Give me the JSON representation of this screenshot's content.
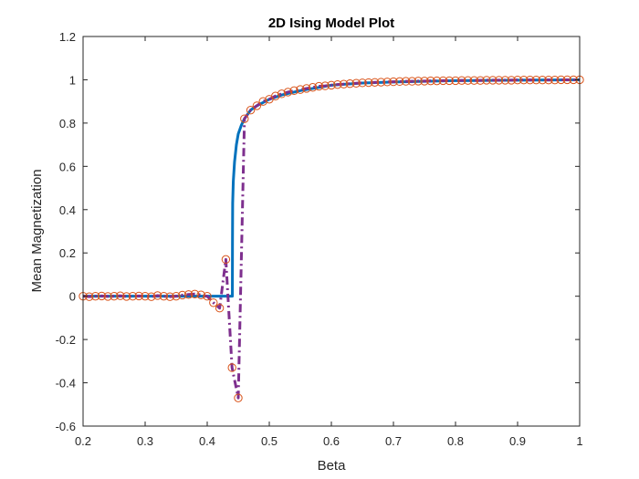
{
  "chart_data": {
    "type": "line",
    "title": "2D Ising Model Plot",
    "xlabel": "Beta",
    "ylabel": "Mean Magnetization",
    "xlim": [
      0.2,
      1
    ],
    "ylim": [
      -0.6,
      1.2
    ],
    "xticks": [
      0.2,
      0.3,
      0.4,
      0.5,
      0.6,
      0.7,
      0.8,
      0.9,
      1
    ],
    "yticks": [
      -0.6,
      -0.4,
      -0.2,
      0,
      0.2,
      0.4,
      0.6,
      0.8,
      1,
      1.2
    ],
    "xtick_labels": [
      "0.2",
      "0.3",
      "0.4",
      "0.5",
      "0.6",
      "0.7",
      "0.8",
      "0.9",
      "1"
    ],
    "ytick_labels": [
      "-0.6",
      "-0.4",
      "-0.2",
      "0",
      "0.2",
      "0.4",
      "0.6",
      "0.8",
      "1",
      "1.2"
    ],
    "grid": false,
    "series": [
      {
        "style": "solid",
        "color": "#0072BD",
        "x": [
          0.2,
          0.3,
          0.4,
          0.43,
          0.4405,
          0.4407,
          0.441,
          0.442,
          0.444,
          0.447,
          0.45,
          0.455,
          0.46,
          0.47,
          0.48,
          0.5,
          0.52,
          0.55,
          0.6,
          0.65,
          0.7,
          0.8,
          0.9,
          1.0
        ],
        "y": [
          0,
          0,
          0,
          0,
          0,
          0.25,
          0.43,
          0.53,
          0.62,
          0.7,
          0.75,
          0.79,
          0.82,
          0.86,
          0.88,
          0.91,
          0.93,
          0.95,
          0.975,
          0.985,
          0.99,
          0.996,
          0.998,
          1.0
        ]
      },
      {
        "style": "dash-dot",
        "color": "#7E2F8E",
        "marker": "circle",
        "marker_color": "#D95319",
        "x": [
          0.2,
          0.21,
          0.22,
          0.23,
          0.24,
          0.25,
          0.26,
          0.27,
          0.28,
          0.29,
          0.3,
          0.31,
          0.32,
          0.33,
          0.34,
          0.35,
          0.36,
          0.37,
          0.38,
          0.39,
          0.4,
          0.41,
          0.42,
          0.43,
          0.44,
          0.45,
          0.46,
          0.47,
          0.48,
          0.49,
          0.5,
          0.51,
          0.52,
          0.53,
          0.54,
          0.55,
          0.56,
          0.57,
          0.58,
          0.59,
          0.6,
          0.61,
          0.62,
          0.63,
          0.64,
          0.65,
          0.66,
          0.67,
          0.68,
          0.69,
          0.7,
          0.71,
          0.72,
          0.73,
          0.74,
          0.75,
          0.76,
          0.77,
          0.78,
          0.79,
          0.8,
          0.81,
          0.82,
          0.83,
          0.84,
          0.85,
          0.86,
          0.87,
          0.88,
          0.89,
          0.9,
          0.91,
          0.92,
          0.93,
          0.94,
          0.95,
          0.96,
          0.97,
          0.98,
          0.99,
          1.0
        ],
        "y": [
          0.0,
          -0.002,
          0.0,
          0.001,
          -0.001,
          0.0,
          0.002,
          -0.001,
          0.0,
          0.001,
          0.0,
          -0.002,
          0.003,
          0.0,
          -0.002,
          0.0,
          0.005,
          0.008,
          0.01,
          0.006,
          0.0,
          -0.03,
          -0.055,
          0.17,
          -0.33,
          -0.47,
          0.82,
          0.86,
          0.88,
          0.9,
          0.91,
          0.925,
          0.935,
          0.943,
          0.95,
          0.955,
          0.96,
          0.965,
          0.97,
          0.972,
          0.975,
          0.978,
          0.98,
          0.982,
          0.984,
          0.986,
          0.987,
          0.988,
          0.989,
          0.99,
          0.991,
          0.992,
          0.993,
          0.993,
          0.994,
          0.994,
          0.995,
          0.995,
          0.996,
          0.996,
          0.996,
          0.997,
          0.997,
          0.997,
          0.997,
          0.998,
          0.998,
          0.998,
          0.998,
          0.998,
          0.999,
          0.999,
          0.999,
          0.999,
          0.999,
          0.999,
          0.999,
          1.0,
          1.0,
          1.0,
          1.0
        ]
      }
    ]
  }
}
